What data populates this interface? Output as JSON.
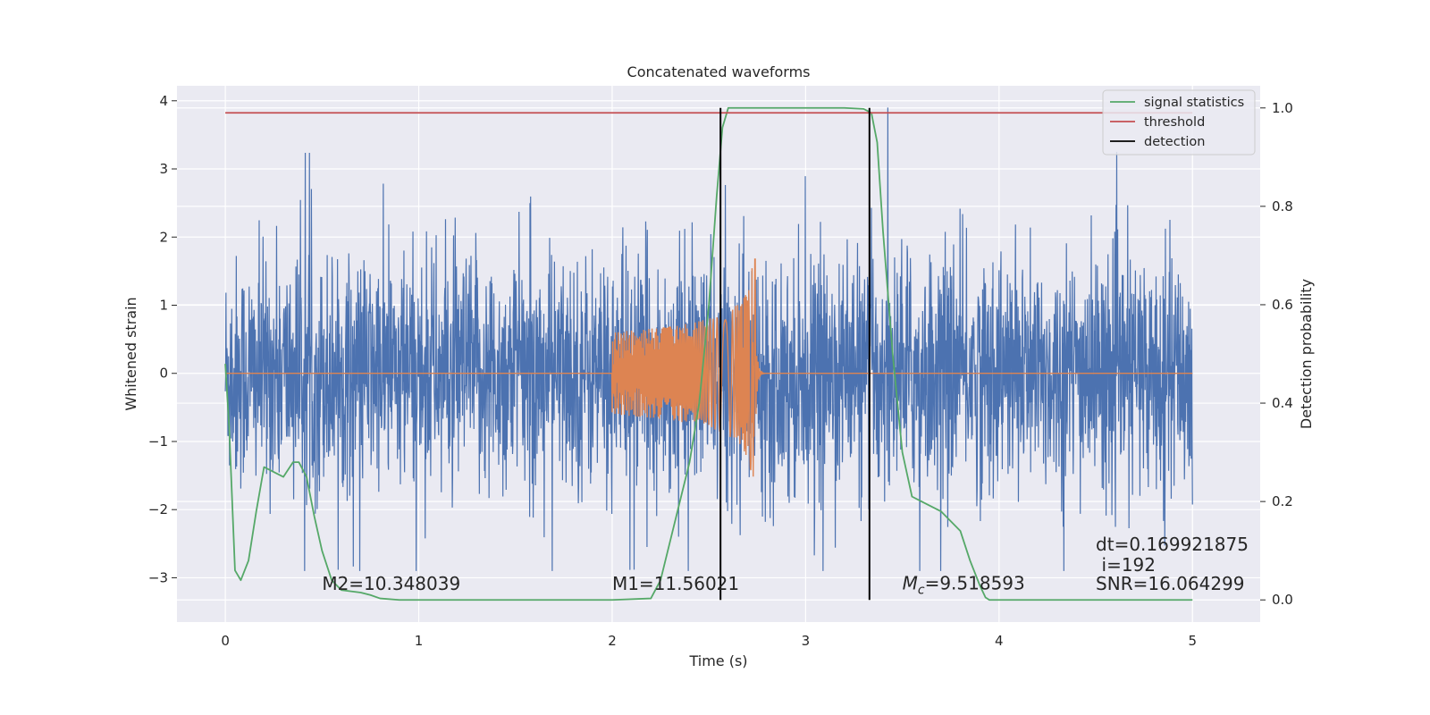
{
  "chart_data": {
    "type": "line",
    "title": "Concatenated waveforms",
    "xlabel": "Time (s)",
    "ylabel": "Whitened strain",
    "y2label": "Detection probability",
    "xlim": [
      -0.25,
      5.35
    ],
    "ylim": [
      -3.65,
      4.22
    ],
    "y2lim": [
      -0.045,
      1.045
    ],
    "xticks": [
      0,
      1,
      2,
      3,
      4,
      5
    ],
    "yticks": [
      -3,
      -2,
      -1,
      0,
      1,
      2,
      3,
      4
    ],
    "y2ticks": [
      0.0,
      0.2,
      0.4,
      0.6,
      0.8,
      1.0
    ],
    "xtick_labels": [
      "0",
      "1",
      "2",
      "3",
      "4",
      "5"
    ],
    "ytick_labels": [
      "−3",
      "−2",
      "−1",
      "0",
      "1",
      "2",
      "3",
      "4"
    ],
    "y2tick_labels": [
      "0.0",
      "0.2",
      "0.4",
      "0.6",
      "0.8",
      "1.0"
    ],
    "grid": true,
    "legend_position": "top-right",
    "series": [
      {
        "name": "",
        "axis": "left",
        "color": "#4c72b0",
        "kind": "whitened-noise",
        "x_range": [
          0,
          5
        ],
        "approx_envelope": [
          -2.9,
          3.9
        ]
      },
      {
        "name": "",
        "axis": "left",
        "color": "#dd8452",
        "kind": "chirp-waveform",
        "start": 2.0,
        "merger": 2.74,
        "peak_amplitude": 2.4
      },
      {
        "name": "signal statistics",
        "axis": "right",
        "color": "#55a868",
        "x": [
          0.0,
          0.02,
          0.05,
          0.08,
          0.12,
          0.16,
          0.2,
          0.25,
          0.3,
          0.35,
          0.38,
          0.42,
          0.46,
          0.5,
          0.55,
          0.6,
          0.7,
          0.75,
          0.8,
          0.9,
          1.0,
          1.5,
          2.0,
          2.2,
          2.25,
          2.3,
          2.35,
          2.4,
          2.45,
          2.5,
          2.54,
          2.57,
          2.6,
          2.62,
          2.7,
          3.0,
          3.2,
          3.3,
          3.34,
          3.37,
          3.4,
          3.45,
          3.5,
          3.55,
          3.6,
          3.7,
          3.75,
          3.8,
          3.85,
          3.9,
          3.93,
          3.95,
          4.0,
          4.5,
          5.0
        ],
        "values": [
          0.48,
          0.35,
          0.06,
          0.04,
          0.08,
          0.18,
          0.27,
          0.26,
          0.25,
          0.28,
          0.28,
          0.25,
          0.17,
          0.1,
          0.04,
          0.02,
          0.015,
          0.01,
          0.003,
          0.0,
          0.0,
          0.0,
          0.0,
          0.003,
          0.04,
          0.12,
          0.2,
          0.28,
          0.4,
          0.6,
          0.82,
          0.96,
          1.0,
          1.0,
          1.0,
          1.0,
          1.0,
          0.998,
          0.99,
          0.93,
          0.75,
          0.5,
          0.3,
          0.21,
          0.2,
          0.18,
          0.16,
          0.14,
          0.08,
          0.03,
          0.005,
          0.0,
          0.0,
          0.0,
          0.0
        ]
      },
      {
        "name": "threshold",
        "axis": "right",
        "color": "#c44e52",
        "x": [
          0,
          5
        ],
        "values": [
          0.99,
          0.99
        ]
      },
      {
        "name": "detection",
        "axis": "right",
        "color": "#000000",
        "vertical_lines_x": [
          2.56,
          3.33
        ],
        "range": [
          0.0,
          1.0
        ]
      }
    ],
    "annotations": [
      {
        "text": "M2=10.348039",
        "x": 0.5,
        "y": -3.18
      },
      {
        "text": "M1=11.56021",
        "x": 2.0,
        "y": -3.18
      },
      {
        "text": "M_c=9.518593",
        "x": 3.5,
        "y": -3.17,
        "main": "M",
        "sub": "c",
        "rest": "=9.518593"
      },
      {
        "text": "dt=0.169921875",
        "x": 4.5,
        "y": -2.6
      },
      {
        "text": "i=192",
        "x": 4.53,
        "y": -2.9
      },
      {
        "text": "SNR=16.064299",
        "x": 4.5,
        "y": -3.18
      }
    ]
  }
}
